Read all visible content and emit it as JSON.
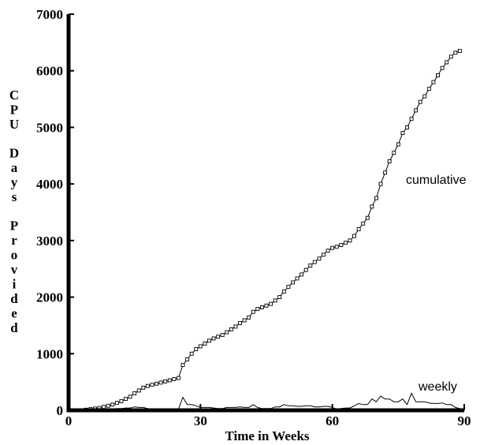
{
  "chart_data": {
    "type": "line",
    "xlabel": "Time in Weeks",
    "ylabel": "CPU Days Provided",
    "xlim": [
      0,
      90
    ],
    "ylim": [
      0,
      7000
    ],
    "x_ticks": [
      "0",
      "30",
      "60",
      "90"
    ],
    "y_ticks": [
      "0",
      "1000",
      "2000",
      "3000",
      "4000",
      "5000",
      "6000",
      "7000"
    ],
    "grid": false,
    "series": [
      {
        "name": "cumulative",
        "marker": "square",
        "x": [
          0,
          1,
          2,
          3,
          4,
          5,
          6,
          7,
          8,
          9,
          10,
          11,
          12,
          13,
          14,
          15,
          16,
          17,
          18,
          19,
          20,
          21,
          22,
          23,
          24,
          25,
          26,
          27,
          28,
          29,
          30,
          31,
          32,
          33,
          34,
          35,
          36,
          37,
          38,
          39,
          40,
          41,
          42,
          43,
          44,
          45,
          46,
          47,
          48,
          49,
          50,
          51,
          52,
          53,
          54,
          55,
          56,
          57,
          58,
          59,
          60,
          61,
          62,
          63,
          64,
          65,
          66,
          67,
          68,
          69,
          70,
          71,
          72,
          73,
          74,
          75,
          76,
          77,
          78,
          79,
          80,
          81,
          82,
          83,
          84,
          85,
          86,
          87,
          88,
          89
        ],
        "values": [
          0,
          0,
          0,
          0,
          10,
          20,
          30,
          40,
          60,
          80,
          100,
          130,
          160,
          200,
          240,
          300,
          350,
          400,
          430,
          450,
          470,
          490,
          510,
          530,
          550,
          570,
          800,
          900,
          1000,
          1080,
          1130,
          1180,
          1230,
          1270,
          1300,
          1330,
          1380,
          1430,
          1480,
          1540,
          1590,
          1640,
          1740,
          1790,
          1820,
          1850,
          1880,
          1940,
          2000,
          2100,
          2180,
          2260,
          2330,
          2400,
          2480,
          2560,
          2620,
          2680,
          2750,
          2820,
          2870,
          2890,
          2920,
          2960,
          3000,
          3080,
          3200,
          3300,
          3400,
          3600,
          3750,
          4000,
          4200,
          4400,
          4550,
          4700,
          4900,
          5000,
          5150,
          5300,
          5450,
          5550,
          5680,
          5800,
          5920,
          6050,
          6150,
          6250,
          6320,
          6350
        ]
      },
      {
        "name": "weekly",
        "x": [
          0,
          1,
          2,
          3,
          4,
          5,
          6,
          7,
          8,
          9,
          10,
          11,
          12,
          13,
          14,
          15,
          16,
          17,
          18,
          19,
          20,
          21,
          22,
          23,
          24,
          25,
          26,
          27,
          28,
          29,
          30,
          31,
          32,
          33,
          34,
          35,
          36,
          37,
          38,
          39,
          40,
          41,
          42,
          43,
          44,
          45,
          46,
          47,
          48,
          49,
          50,
          51,
          52,
          53,
          54,
          55,
          56,
          57,
          58,
          59,
          60,
          61,
          62,
          63,
          64,
          65,
          66,
          67,
          68,
          69,
          70,
          71,
          72,
          73,
          74,
          75,
          76,
          77,
          78,
          79,
          80,
          81,
          82,
          83,
          84,
          85,
          86,
          87,
          88,
          89
        ],
        "values": [
          0,
          0,
          0,
          0,
          10,
          10,
          10,
          10,
          20,
          20,
          20,
          30,
          30,
          40,
          40,
          60,
          50,
          50,
          30,
          20,
          20,
          20,
          20,
          20,
          20,
          20,
          230,
          100,
          100,
          80,
          50,
          50,
          50,
          40,
          30,
          30,
          50,
          50,
          50,
          60,
          50,
          50,
          100,
          50,
          30,
          30,
          30,
          60,
          60,
          100,
          80,
          80,
          70,
          70,
          80,
          80,
          60,
          60,
          70,
          70,
          50,
          20,
          30,
          40,
          40,
          80,
          120,
          100,
          100,
          200,
          150,
          250,
          200,
          200,
          150,
          150,
          200,
          100,
          300,
          150,
          150,
          150,
          130,
          120,
          120,
          130,
          100,
          100,
          50,
          30
        ]
      }
    ]
  }
}
